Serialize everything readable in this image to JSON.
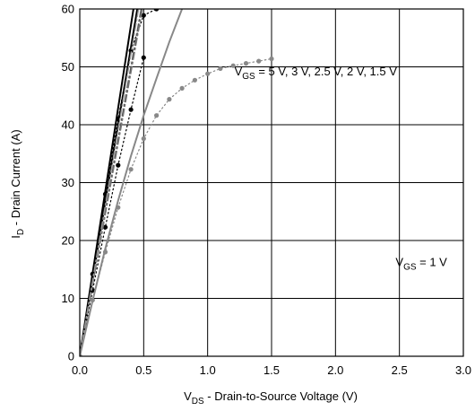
{
  "chart_data": {
    "type": "line",
    "title": "",
    "xlabel": {
      "main": "V",
      "sub": "DS",
      "rest": " - Drain-to-Source Voltage (V)"
    },
    "ylabel": {
      "main": "I",
      "sub": "D",
      "rest": " - Drain Current (A)"
    },
    "xlim": [
      0,
      3.0
    ],
    "ylim": [
      0,
      60
    ],
    "x_ticks": [
      "0.0",
      "0.5",
      "1.0",
      "1.5",
      "2.0",
      "2.5",
      "3.0"
    ],
    "y_ticks": [
      "0",
      "10",
      "20",
      "30",
      "40",
      "50",
      "60"
    ],
    "grid": true,
    "annotations": [
      {
        "main": "V",
        "sub": "GS",
        "rest": " = 5 V, 3 V, 2.5 V, 2 V, 1.5 V",
        "at": [
          1.21,
          48.5
        ]
      },
      {
        "main": "V",
        "sub": "GS",
        "rest": " = 1 V",
        "at": [
          2.47,
          15.6
        ]
      }
    ],
    "series": [
      {
        "style": "solid",
        "color": "#000000",
        "x": [
          0,
          0.42
        ],
        "y": [
          0,
          60
        ]
      },
      {
        "style": "solid",
        "color": "#000000",
        "x": [
          0,
          0.45
        ],
        "y": [
          0,
          60
        ]
      },
      {
        "style": "dotted",
        "color": "#000000",
        "x": [
          0,
          0.1,
          0.2,
          0.3,
          0.4,
          0.5,
          0.6
        ],
        "y": [
          0,
          14.2,
          28.0,
          41.0,
          52.8,
          58.9,
          60
        ]
      },
      {
        "style": "dotted",
        "color": "#000000",
        "x": [
          0,
          0.1,
          0.2,
          0.3,
          0.4,
          0.5
        ],
        "y": [
          0,
          11.4,
          22.3,
          33.0,
          42.6,
          51.6
        ]
      },
      {
        "style": "dashdot",
        "color": "#555555",
        "x": [
          0,
          0.48
        ],
        "y": [
          0,
          60
        ]
      },
      {
        "style": "dashdot",
        "color": "#777777",
        "x": [
          0,
          0.49
        ],
        "y": [
          0,
          60
        ]
      },
      {
        "style": "dashdot",
        "color": "#999999",
        "x": [
          0,
          0.46
        ],
        "y": [
          0,
          60
        ]
      },
      {
        "style": "dotted",
        "color": "#888888",
        "x": [
          0,
          0.1,
          0.2,
          0.3,
          0.4,
          0.5,
          0.6,
          0.7,
          0.8,
          0.9,
          1.0,
          1.1,
          1.2,
          1.3,
          1.4,
          1.5
        ],
        "y": [
          0,
          9.7,
          18.0,
          25.7,
          32.3,
          37.6,
          41.6,
          44.4,
          46.3,
          47.7,
          48.8,
          49.7,
          50.2,
          50.6,
          51.0,
          51.4
        ]
      },
      {
        "style": "solid",
        "color": "#888888",
        "x": [
          0,
          0.1,
          0.2,
          0.3,
          0.4,
          0.5,
          0.6,
          0.7,
          0.8
        ],
        "y": [
          0,
          9.6,
          18.6,
          26.9,
          34.6,
          41.6,
          48.0,
          54.3,
          60
        ]
      }
    ]
  }
}
